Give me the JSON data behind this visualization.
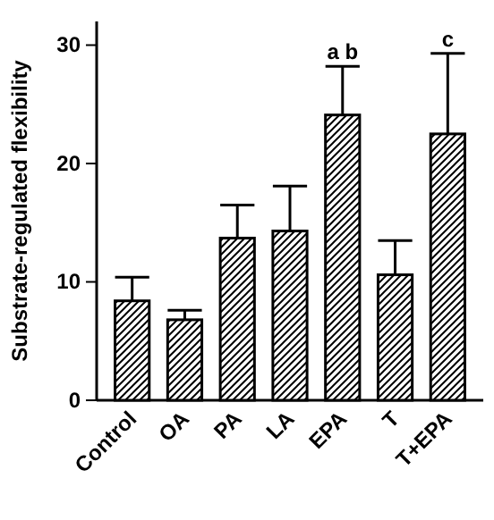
{
  "chart_data": {
    "type": "bar",
    "ylabel": "Substrate-regulated flexibility",
    "categories": [
      "Control",
      "OA",
      "PA",
      "LA",
      "EPA",
      "T",
      "T+EPA"
    ],
    "values": [
      8.4,
      6.8,
      13.7,
      14.3,
      24.1,
      10.6,
      22.5
    ],
    "errors": [
      2.0,
      0.8,
      2.8,
      3.8,
      4.1,
      2.9,
      6.8
    ],
    "color": "#000000",
    "ylim": [
      0,
      32
    ],
    "yticks": [
      0,
      10,
      20,
      30
    ],
    "annotations": [
      "a b",
      "c"
    ]
  }
}
